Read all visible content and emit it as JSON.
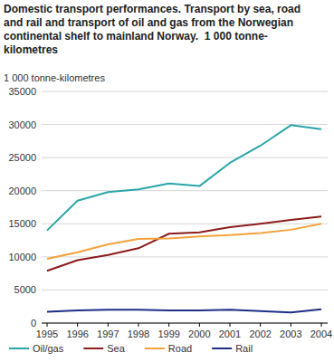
{
  "chart_data": {
    "type": "line",
    "title": "Domestic transport performances. Transport by sea, road and rail and transport of oil and gas from the Norwegian continental shelf to mainland Norway.  1 000 tonne-kilometres",
    "y_label": "1 000 tonne-kilometres",
    "categories": [
      "1995",
      "1996",
      "1997",
      "1998",
      "1999",
      "2000",
      "2001",
      "2002",
      "2003",
      "2004"
    ],
    "series": [
      {
        "name": "Oil/gas",
        "color": "#2ba6a8",
        "values": [
          14000,
          18500,
          19800,
          20200,
          21100,
          20700,
          24200,
          26800,
          29900,
          29300
        ]
      },
      {
        "name": "Sea",
        "color": "#8c1c1c",
        "values": [
          7900,
          9500,
          10300,
          11300,
          13500,
          13700,
          14500,
          15000,
          15600,
          16100
        ]
      },
      {
        "name": "Road",
        "color": "#f4a23b",
        "values": [
          9700,
          10700,
          11900,
          12700,
          12800,
          13100,
          13300,
          13600,
          14100,
          15000
        ]
      },
      {
        "name": "Rail",
        "color": "#1f2e86",
        "values": [
          1700,
          1900,
          2000,
          2000,
          1900,
          1900,
          2000,
          1800,
          1600,
          2100
        ]
      }
    ],
    "ylim": [
      0,
      35000
    ],
    "yticks": [
      0,
      5000,
      10000,
      15000,
      20000,
      25000,
      30000,
      35000
    ],
    "grid": true,
    "legend": "bottom"
  }
}
